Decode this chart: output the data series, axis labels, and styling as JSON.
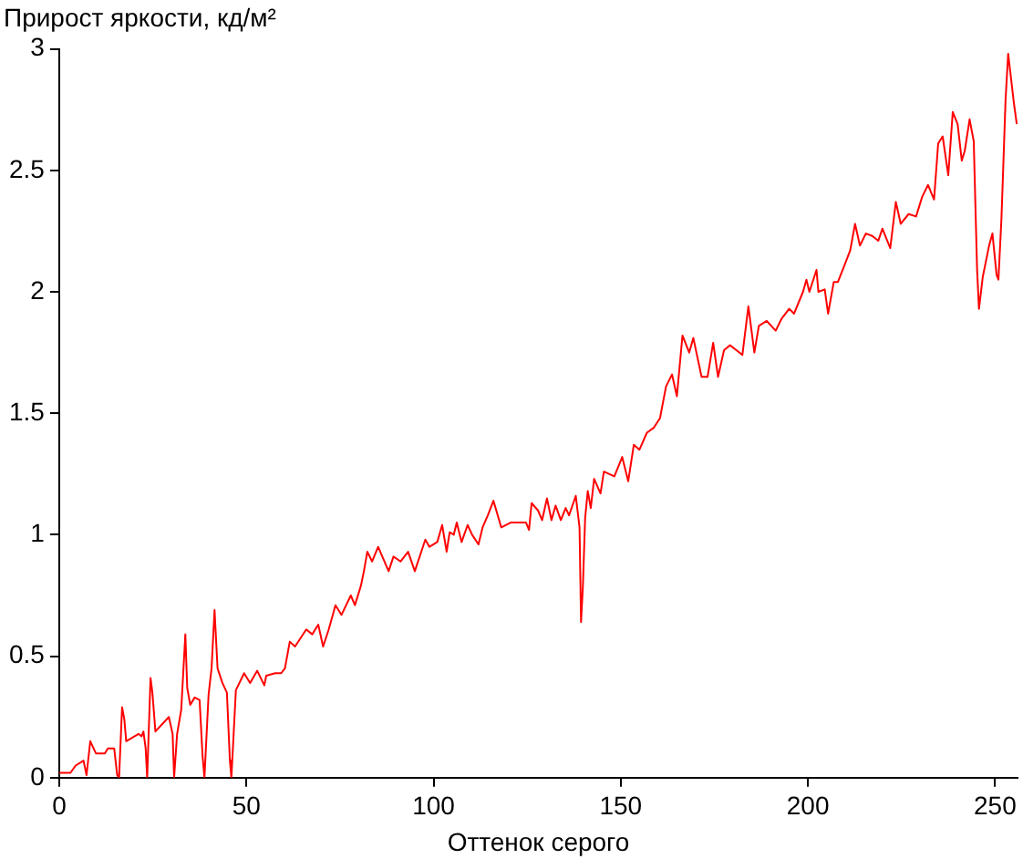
{
  "chart_data": {
    "type": "line",
    "ylabel": "Прирост яркости, кд/м²",
    "xlabel": "Оттенок серого",
    "xlim": [
      0,
      256
    ],
    "xticks": [
      0,
      50,
      100,
      150,
      200,
      250
    ],
    "ylim": [
      0,
      3
    ],
    "yticks": [
      0,
      0.5,
      1,
      1.5,
      2,
      2.5,
      3
    ],
    "grid": false,
    "legend": false,
    "marker": "none",
    "line_style": "solid",
    "series": [
      {
        "color": "#ff0000",
        "x": [
          0,
          3,
          4.4,
          6.5,
          7.3,
          8.3,
          9.8,
          12.2,
          13,
          14.7,
          15.5,
          16,
          16.8,
          17.4,
          17.9,
          21.2,
          22,
          22.5,
          23.1,
          23.5,
          24.4,
          24.9,
          25.7,
          29.3,
          30.3,
          30.7,
          31.5,
          32.6,
          33.7,
          34.2,
          35,
          36.2,
          37.5,
          38.3,
          38.8,
          39.9,
          40.7,
          41.5,
          42.3,
          43.6,
          44.8,
          45.6,
          46,
          47.2,
          49.4,
          51,
          52.9,
          54.8,
          55.3,
          57.7,
          59.3,
          60.3,
          61.6,
          63,
          66,
          67.6,
          69.2,
          70.5,
          72,
          73.8,
          75.4,
          77.9,
          79,
          80.6,
          81.4,
          82.3,
          83.6,
          85.2,
          88,
          89.3,
          91.2,
          93.2,
          95,
          97.8,
          98.9,
          101,
          102.3,
          103.5,
          104.3,
          105.4,
          106.2,
          107.5,
          109.1,
          110.3,
          112,
          113.1,
          114.5,
          116,
          118.1,
          120.6,
          122.2,
          124.7,
          125.5,
          126.2,
          127.9,
          129,
          130.3,
          131.5,
          132.6,
          134,
          135.3,
          136.2,
          138,
          139,
          139.4,
          139.9,
          140.5,
          141.2,
          142,
          142.9,
          144.6,
          145.5,
          148.3,
          150.4,
          152,
          153.5,
          155,
          157,
          158.8,
          160.5,
          162.1,
          163.7,
          165,
          166.5,
          168.3,
          169.4,
          171.6,
          173.2,
          174.7,
          176,
          177.6,
          179.2,
          180.9,
          182.5,
          184.1,
          185.7,
          186.9,
          189,
          191.4,
          193,
          195,
          196.3,
          198.7,
          199.6,
          200.4,
          202.3,
          202.8,
          204.5,
          205.4,
          206.9,
          208,
          209.8,
          211.3,
          212.6,
          213.9,
          215.5,
          217.2,
          218.8,
          219.9,
          222,
          223.5,
          224.8,
          226.9,
          228.9,
          230.5,
          232.1,
          233.7,
          234.8,
          236,
          237.5,
          238.7,
          240,
          241.1,
          241.9,
          243.2,
          244.3,
          245.2,
          245.7,
          246.7,
          248.4,
          249.3,
          250.4,
          250.9,
          251.7,
          252.2,
          252.8,
          253.5,
          255,
          255.8
        ],
        "values": [
          0.02,
          0.02,
          0.05,
          0.07,
          0.01,
          0.15,
          0.1,
          0.1,
          0.12,
          0.12,
          0.01,
          0,
          0.29,
          0.24,
          0.15,
          0.18,
          0.17,
          0.19,
          0.12,
          0,
          0.41,
          0.35,
          0.19,
          0.25,
          0.18,
          0,
          0.18,
          0.28,
          0.59,
          0.37,
          0.3,
          0.33,
          0.32,
          0.09,
          0,
          0.34,
          0.45,
          0.69,
          0.45,
          0.39,
          0.35,
          0.07,
          0,
          0.36,
          0.43,
          0.39,
          0.44,
          0.38,
          0.42,
          0.43,
          0.43,
          0.45,
          0.56,
          0.54,
          0.61,
          0.59,
          0.63,
          0.54,
          0.61,
          0.71,
          0.67,
          0.75,
          0.71,
          0.79,
          0.85,
          0.93,
          0.89,
          0.95,
          0.85,
          0.91,
          0.89,
          0.93,
          0.85,
          0.98,
          0.95,
          0.97,
          1.04,
          0.93,
          1.01,
          1,
          1.05,
          0.97,
          1.04,
          1,
          0.96,
          1.03,
          1.08,
          1.14,
          1.03,
          1.05,
          1.05,
          1.05,
          1.02,
          1.13,
          1.1,
          1.06,
          1.15,
          1.06,
          1.12,
          1.06,
          1.11,
          1.08,
          1.16,
          1.03,
          0.64,
          0.79,
          1.07,
          1.18,
          1.11,
          1.23,
          1.17,
          1.26,
          1.24,
          1.32,
          1.22,
          1.37,
          1.35,
          1.42,
          1.44,
          1.48,
          1.61,
          1.66,
          1.57,
          1.82,
          1.75,
          1.81,
          1.65,
          1.65,
          1.79,
          1.65,
          1.76,
          1.78,
          1.76,
          1.74,
          1.94,
          1.75,
          1.86,
          1.88,
          1.84,
          1.89,
          1.93,
          1.91,
          2,
          2.05,
          2,
          2.09,
          2,
          2.01,
          1.91,
          2.04,
          2.04,
          2.11,
          2.17,
          2.28,
          2.19,
          2.24,
          2.23,
          2.21,
          2.26,
          2.18,
          2.37,
          2.28,
          2.32,
          2.31,
          2.39,
          2.44,
          2.38,
          2.61,
          2.64,
          2.48,
          2.74,
          2.69,
          2.54,
          2.58,
          2.71,
          2.62,
          2.09,
          1.93,
          2.06,
          2.19,
          2.24,
          2.07,
          2.05,
          2.3,
          2.52,
          2.79,
          2.98,
          2.78,
          2.69
        ]
      }
    ]
  }
}
